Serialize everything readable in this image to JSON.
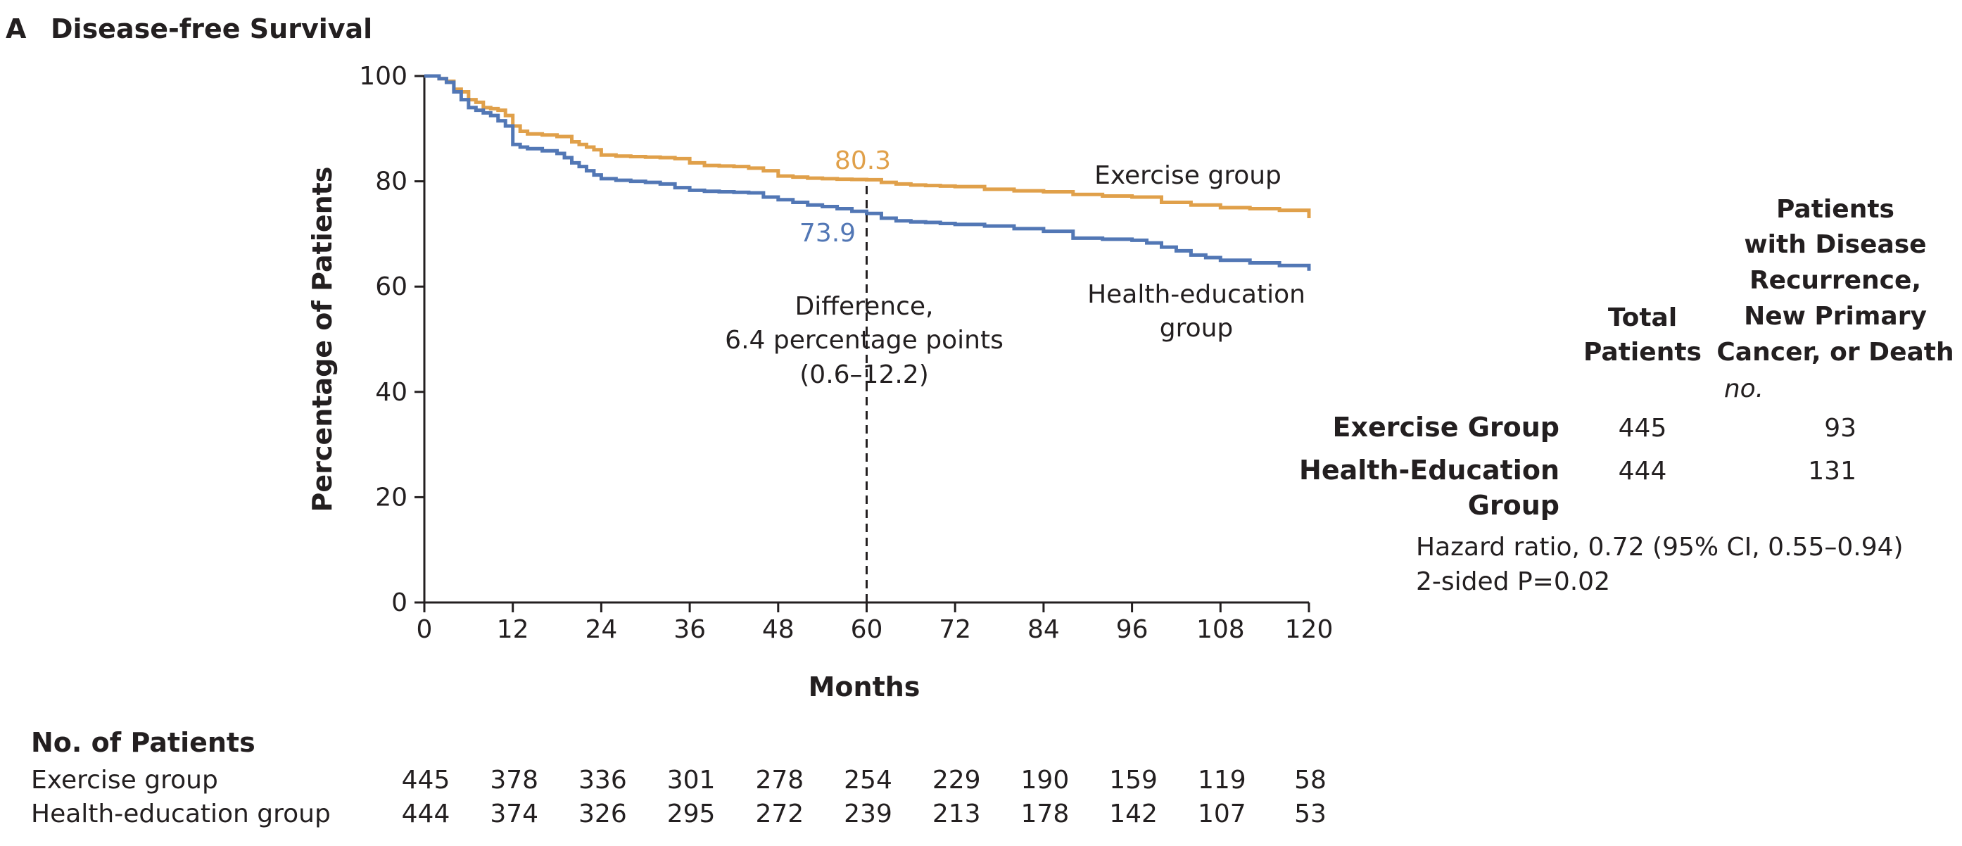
{
  "panel": {
    "letter": "A",
    "title": "Disease-free Survival"
  },
  "colors": {
    "exercise": "#e0a04a",
    "health_education": "#5277b5",
    "axis": "#231f20"
  },
  "chart_data": {
    "type": "line",
    "step": true,
    "title": "Disease-free Survival",
    "xlabel": "Months",
    "ylabel": "Percentage of Patients",
    "xlim": [
      0,
      120
    ],
    "ylim": [
      0,
      100
    ],
    "xticks": [
      0,
      12,
      24,
      36,
      48,
      60,
      72,
      84,
      96,
      108,
      120
    ],
    "yticks": [
      0,
      20,
      40,
      60,
      80,
      100
    ],
    "grid": false,
    "series": [
      {
        "name": "Exercise group",
        "color": "#e0a04a",
        "x": [
          0,
          1,
          2,
          3,
          4,
          5,
          6,
          7,
          8,
          9,
          10,
          11,
          12,
          13,
          14,
          16,
          18,
          20,
          21,
          22,
          23,
          24,
          26,
          28,
          30,
          32,
          34,
          36,
          38,
          40,
          42,
          44,
          46,
          48,
          50,
          52,
          54,
          56,
          58,
          60,
          62,
          64,
          66,
          68,
          70,
          72,
          76,
          80,
          84,
          88,
          92,
          96,
          100,
          104,
          108,
          112,
          116,
          120
        ],
        "y": [
          100,
          100,
          99.5,
          99,
          97.5,
          97,
          95.5,
          95,
          94,
          93.8,
          93.5,
          92.5,
          90.5,
          89.5,
          89,
          88.8,
          88.5,
          87.5,
          87,
          86.5,
          86,
          85,
          84.8,
          84.7,
          84.6,
          84.5,
          84.3,
          83.5,
          83,
          82.9,
          82.8,
          82.5,
          82,
          81,
          80.8,
          80.6,
          80.5,
          80.4,
          80.35,
          80.3,
          79.8,
          79.5,
          79.3,
          79.2,
          79.1,
          79,
          78.5,
          78.2,
          78,
          77.5,
          77.2,
          77,
          76,
          75.5,
          75,
          74.8,
          74.5,
          73
        ]
      },
      {
        "name": "Health-education group",
        "color": "#5277b5",
        "x": [
          0,
          1,
          2,
          3,
          4,
          5,
          6,
          7,
          8,
          9,
          10,
          11,
          12,
          13,
          14,
          16,
          18,
          19,
          20,
          21,
          22,
          23,
          24,
          26,
          28,
          30,
          32,
          34,
          36,
          38,
          40,
          42,
          44,
          46,
          48,
          50,
          52,
          54,
          56,
          58,
          60,
          62,
          64,
          66,
          68,
          70,
          72,
          76,
          80,
          84,
          88,
          92,
          96,
          98,
          100,
          102,
          104,
          106,
          108,
          112,
          116,
          120
        ],
        "y": [
          100,
          100,
          99.5,
          98.8,
          97,
          95.5,
          94,
          93.5,
          93,
          92.5,
          91.5,
          90.5,
          87,
          86.5,
          86.2,
          85.8,
          85.3,
          84.5,
          83.5,
          82.8,
          82,
          81.2,
          80.5,
          80.2,
          80,
          79.8,
          79.5,
          78.8,
          78.3,
          78.1,
          78,
          77.9,
          77.8,
          77,
          76.5,
          76,
          75.5,
          75.2,
          74.8,
          74.3,
          73.9,
          73,
          72.5,
          72.3,
          72.2,
          72,
          71.8,
          71.5,
          71,
          70.5,
          69.2,
          69,
          68.8,
          68.3,
          67.5,
          66.8,
          66,
          65.5,
          65,
          64.5,
          64,
          63
        ]
      }
    ],
    "annotations": [
      {
        "text": "80.3",
        "series": "Exercise group",
        "x": 60,
        "y": 80.3
      },
      {
        "text": "73.9",
        "series": "Health-education group",
        "x": 60,
        "y": 73.9
      },
      {
        "text": "Exercise group"
      },
      {
        "text": "Health-education",
        "line2": "group"
      },
      {
        "text": "Difference,",
        "line2": "6.4 percentage points",
        "line3": "(0.6–12.2)"
      }
    ],
    "reference_line": {
      "x": 60,
      "style": "dashed"
    }
  },
  "summary_table": {
    "headers": {
      "total": [
        "Total",
        "Patients"
      ],
      "events": [
        "Patients",
        "with Disease",
        "Recurrence,",
        "New Primary",
        "Cancer, or Death"
      ]
    },
    "unit": "no.",
    "rows": [
      {
        "label": [
          "Exercise Group"
        ],
        "total": "445",
        "events": "93"
      },
      {
        "label": [
          "Health-Education",
          "Group"
        ],
        "total": "444",
        "events": "131"
      }
    ],
    "hazard_ratio": "Hazard ratio, 0.72 (95% CI, 0.55–0.94)",
    "p_value": "2-sided P=0.02"
  },
  "risk_table": {
    "title": "No. of Patients",
    "rows": [
      {
        "label": "Exercise group",
        "values": [
          "445",
          "378",
          "336",
          "301",
          "278",
          "254",
          "229",
          "190",
          "159",
          "119",
          "58"
        ]
      },
      {
        "label": "Health-education group",
        "values": [
          "444",
          "374",
          "326",
          "295",
          "272",
          "239",
          "213",
          "178",
          "142",
          "107",
          "53"
        ]
      }
    ]
  }
}
